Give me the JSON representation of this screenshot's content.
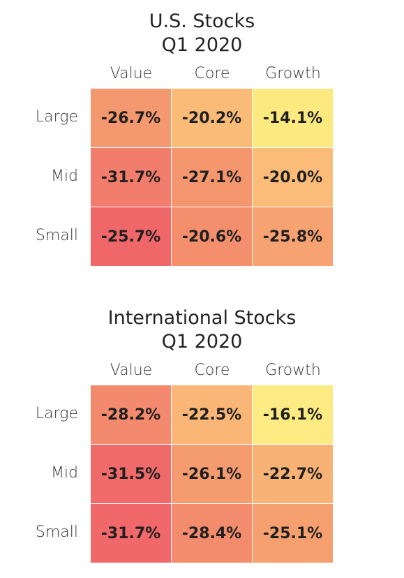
{
  "chart_data": [
    {
      "type": "heatmap",
      "title": "U.S. Stocks",
      "subtitle": "Q1 2020",
      "columns": [
        "Value",
        "Core",
        "Growth"
      ],
      "rows": [
        "Large",
        "Mid",
        "Small"
      ],
      "values": [
        [
          -26.7,
          -20.2,
          -14.1
        ],
        [
          -31.7,
          -27.1,
          -20.0
        ],
        [
          -25.7,
          -20.6,
          -25.8
        ]
      ],
      "labels": [
        [
          "-26.7%",
          "-20.2%",
          "-14.1%"
        ],
        [
          "-31.7%",
          "-27.1%",
          "-20.0%"
        ],
        [
          "-25.7%",
          "-20.6%",
          "-25.8%"
        ]
      ],
      "colors": [
        [
          "#f4986f",
          "#fbbb78",
          "#fcea80"
        ],
        [
          "#f27d6c",
          "#f4966e",
          "#fcbc79"
        ],
        [
          "#f0676a",
          "#f48f6d",
          "#f6a271"
        ]
      ]
    },
    {
      "type": "heatmap",
      "title": "International Stocks",
      "subtitle": "Q1 2020",
      "columns": [
        "Value",
        "Core",
        "Growth"
      ],
      "rows": [
        "Large",
        "Mid",
        "Small"
      ],
      "values": [
        [
          -28.2,
          -22.5,
          -16.1
        ],
        [
          -31.5,
          -26.1,
          -22.7
        ],
        [
          -31.7,
          -28.4,
          -25.1
        ]
      ],
      "labels": [
        [
          "-28.2%",
          "-22.5%",
          "-16.1%"
        ],
        [
          "-31.5%",
          "-26.1%",
          "-22.7%"
        ],
        [
          "-31.7%",
          "-28.4%",
          "-25.1%"
        ]
      ],
      "colors": [
        [
          "#f3896d",
          "#fab676",
          "#fbeb82"
        ],
        [
          "#f06a6a",
          "#f59b70",
          "#f9b276"
        ],
        [
          "#f0686a",
          "#f38c6d",
          "#f6a070"
        ]
      ]
    }
  ]
}
